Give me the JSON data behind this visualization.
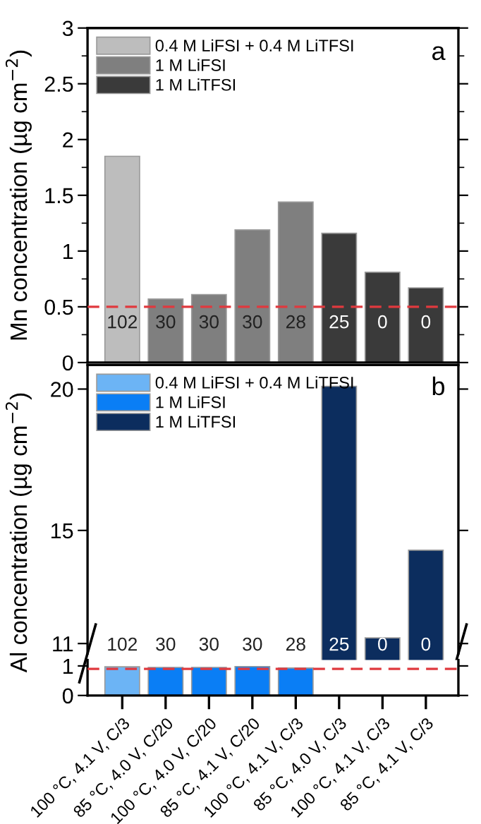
{
  "chart_data": [
    {
      "type": "bar",
      "ylabel": "Mn concentration (µg cm$^{−2}$)",
      "categories": [
        null,
        null,
        null,
        null,
        null,
        null,
        null,
        null
      ],
      "series": [
        {
          "name": "0.4 M LiFSI + 0.4 M LiTFSI",
          "color": "#bdbdbd",
          "values": [
            1.85,
            null,
            null,
            null,
            null,
            null,
            null,
            null
          ]
        },
        {
          "name": "1 M LiFSI",
          "color": "#7f7f7f",
          "values": [
            null,
            0.57,
            0.61,
            1.19,
            1.44,
            null,
            null,
            null
          ]
        },
        {
          "name": "1 M LiTFSI",
          "color": "#3a3a3a",
          "values": [
            null,
            null,
            null,
            null,
            null,
            1.16,
            0.81,
            0.67
          ]
        }
      ],
      "ylim": [
        0,
        3
      ],
      "yticks": [
        0,
        0.5,
        1,
        1.5,
        2,
        2.5,
        3
      ],
      "tick_labels": "y",
      "legend": "top left",
      "ref_lines": [
        {
          "axis": "y",
          "value": 0.5,
          "color": "#e0393e",
          "line_style": "dashed"
        }
      ],
      "annotations": [
        "a",
        "102",
        "30",
        "30",
        "30",
        "28",
        "25",
        "0",
        "0"
      ]
    },
    {
      "type": "bar",
      "ylabel": "Al concentration (µg cm$^{−2}$)",
      "categories": [
        null,
        null,
        null,
        null,
        null,
        null,
        null,
        null
      ],
      "series": [
        {
          "name": "0.4 M LiFSI + 0.4 M LiTFSI",
          "color": "#6cb4f5",
          "values": [
            null,
            null,
            null,
            null,
            null,
            null,
            null,
            null
          ]
        },
        {
          "name": "1 M LiFSI",
          "color": "#0a7ef5",
          "values": [
            null,
            null,
            null,
            null,
            null,
            null,
            null,
            null
          ]
        },
        {
          "name": "1 M LiTFSI",
          "color": "#0c2d5e",
          "values": [
            null,
            null,
            null,
            null,
            null,
            20.1,
            11.2,
            14.3
          ]
        }
      ],
      "ylim": [
        10.65,
        20.85
      ],
      "yticks": [
        11,
        15,
        20
      ],
      "tick_labels": "y",
      "legend": "top left",
      "annotations": [
        "b",
        "102",
        "30",
        "30",
        "30",
        "28",
        "25",
        "0",
        "0"
      ]
    },
    {
      "type": "bar",
      "categories": [
        "100 °C, 4.1 V, C/3",
        "85 °C, 4.0 V, C/20",
        "100 °C, 4.0 V, C/20",
        "85 °C, 4.1 V, C/20",
        "100 °C, 4.1 V, C/3",
        "85 °C, 4.0 V, C/3",
        "100 °C, 4.1 V, C/3",
        "85 °C, 4.1 V, C/3"
      ],
      "series": [
        {
          "color": "#6cb4f5",
          "values": [
            0.97,
            null,
            null,
            null,
            null,
            null,
            null,
            null
          ]
        },
        {
          "color": "#0a7ef5",
          "values": [
            null,
            0.95,
            0.95,
            0.98,
            0.93,
            null,
            null,
            null
          ]
        },
        {
          "color": "#0c2d5e",
          "values": [
            null,
            null,
            null,
            null,
            null,
            null,
            null,
            null
          ]
        }
      ],
      "ylim": [
        0,
        1.2
      ],
      "yticks": [
        0,
        1
      ],
      "ref_lines": [
        {
          "axis": "y",
          "value": 0.9,
          "color": "#e0393e",
          "line_style": "dashed"
        }
      ]
    }
  ]
}
